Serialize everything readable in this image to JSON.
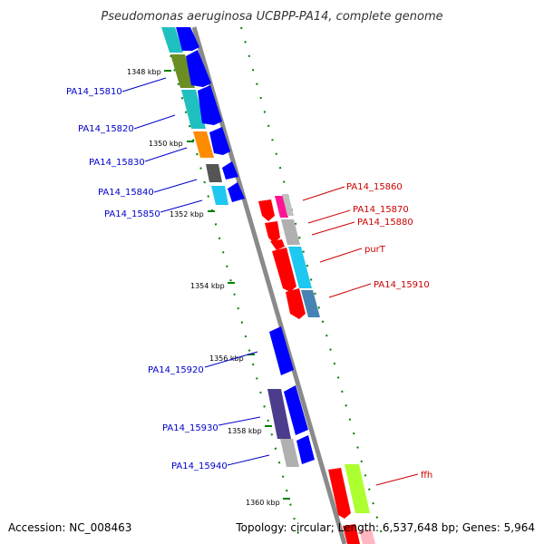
{
  "title": "Pseudomonas aeruginosa UCBPP-PA14, complete genome",
  "accession": "Accession: NC_008463",
  "summary": "Topology: circular; Length: 6,537,648 bp; Genes: 5,964",
  "colors": {
    "left_label": "#0000cc",
    "right_label": "#cc0000",
    "axis": "#808080",
    "tick": "#008000"
  },
  "kbp_marks": [
    {
      "id": "1348",
      "label": "1348 kbp"
    },
    {
      "id": "1350",
      "label": "1350 kbp"
    },
    {
      "id": "1352",
      "label": "1352 kbp"
    },
    {
      "id": "1354",
      "label": "1354 kbp"
    },
    {
      "id": "1356",
      "label": "1356 kbp"
    },
    {
      "id": "1358",
      "label": "1358 kbp"
    },
    {
      "id": "1360",
      "label": "1360 kbp"
    }
  ],
  "left_genes": [
    {
      "id": "pa14_15810",
      "label": "PA14_15810",
      "color": "#6b8e23"
    },
    {
      "id": "pa14_15820",
      "label": "PA14_15820",
      "color": "#20c0c0"
    },
    {
      "id": "pa14_15830",
      "label": "PA14_15830",
      "color": "#ff8c00"
    },
    {
      "id": "pa14_15840",
      "label": "PA14_15840",
      "color": "#555555"
    },
    {
      "id": "pa14_15850",
      "label": "PA14_15850",
      "color": "#1ec8f0"
    },
    {
      "id": "pa14_15920",
      "label": "PA14_15920",
      "color": "#0000ff"
    },
    {
      "id": "pa14_15930",
      "label": "PA14_15930",
      "color": "#4b3c8c"
    },
    {
      "id": "pa14_15940",
      "label": "PA14_15940",
      "color": "#b0b0b0"
    }
  ],
  "right_genes": [
    {
      "id": "pa14_15860",
      "label": "PA14_15860",
      "color": "#ff1493"
    },
    {
      "id": "pa14_15870",
      "label": "PA14_15870",
      "color": "#ff0000"
    },
    {
      "id": "pa14_15880",
      "label": "PA14_15880",
      "color": "#b0b0b0"
    },
    {
      "id": "purt",
      "label": "purT",
      "color": "#1ec8f0"
    },
    {
      "id": "pa14_15910",
      "label": "PA14_15910",
      "color": "#4682b4"
    },
    {
      "id": "ffh",
      "label": "ffh",
      "color": "#adff2f"
    }
  ]
}
